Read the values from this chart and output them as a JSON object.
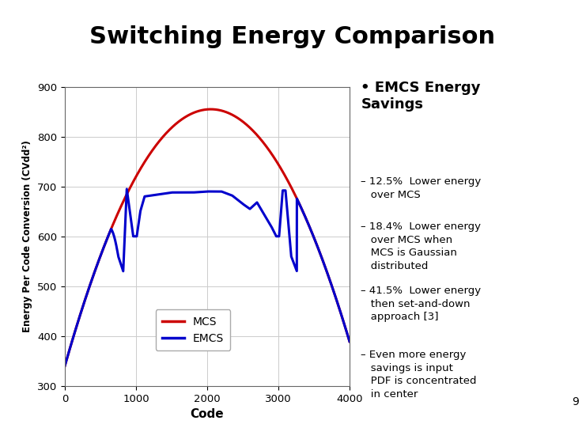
{
  "title": "Switching Energy Comparison",
  "title_fontsize": 22,
  "title_fontweight": "bold",
  "xlabel": "Code",
  "ylabel": "Energy Per Code Conversion (CVdd²)",
  "xlim": [
    0,
    4000
  ],
  "ylim": [
    300,
    900
  ],
  "yticks": [
    300,
    400,
    500,
    600,
    700,
    800,
    900
  ],
  "xticks": [
    0,
    1000,
    2000,
    3000,
    4000
  ],
  "mcs_color": "#cc0000",
  "emcs_color": "#0000cc",
  "line_width": 2.2,
  "background_color": "#ffffff",
  "grid_color": "#cccccc",
  "header_bar_color": "#999999",
  "bullet_main": "EMCS Energy\nSavings",
  "sub_bullets": [
    "– 12.5%  Lower energy\n   over MCS",
    "– 18.4%  Lower energy\n   over MCS when\n   MCS is Gaussian\n   distributed",
    "– 41.5%  Lower energy\n   then set-and-down\n   approach [3]",
    "– Even more energy\n   savings is input\n   PDF is concentrated\n   in center"
  ],
  "page_number": "9",
  "legend_labels": [
    "MCS",
    "EMCS"
  ]
}
